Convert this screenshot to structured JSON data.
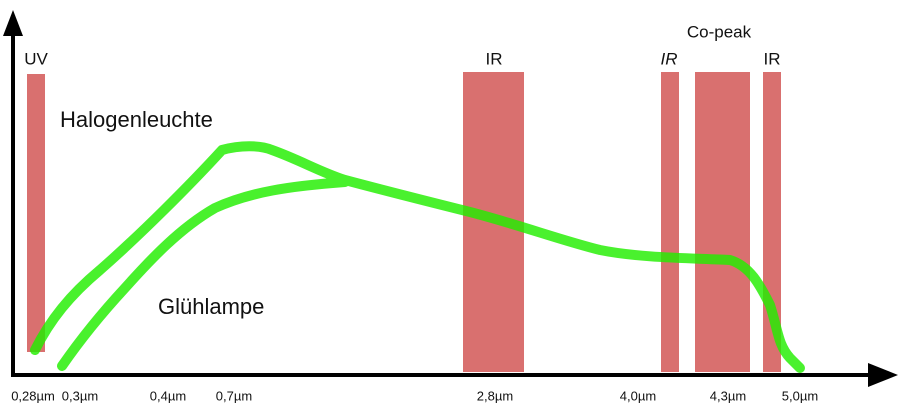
{
  "bands": [
    {
      "label": "UV"
    },
    {
      "label": "IR"
    },
    {
      "label": "IR"
    },
    {
      "label": "Co-peak"
    },
    {
      "label": "IR"
    }
  ],
  "curves": [
    {
      "label": "Halogenleuchte"
    },
    {
      "label": "Glühlampe"
    }
  ],
  "x_ticks": [
    "0,28µm",
    "0,3µm",
    "0,4µm",
    "0,7µm",
    "2,8µm",
    "4,0µm",
    "4,3µm",
    "5,0µm"
  ]
}
